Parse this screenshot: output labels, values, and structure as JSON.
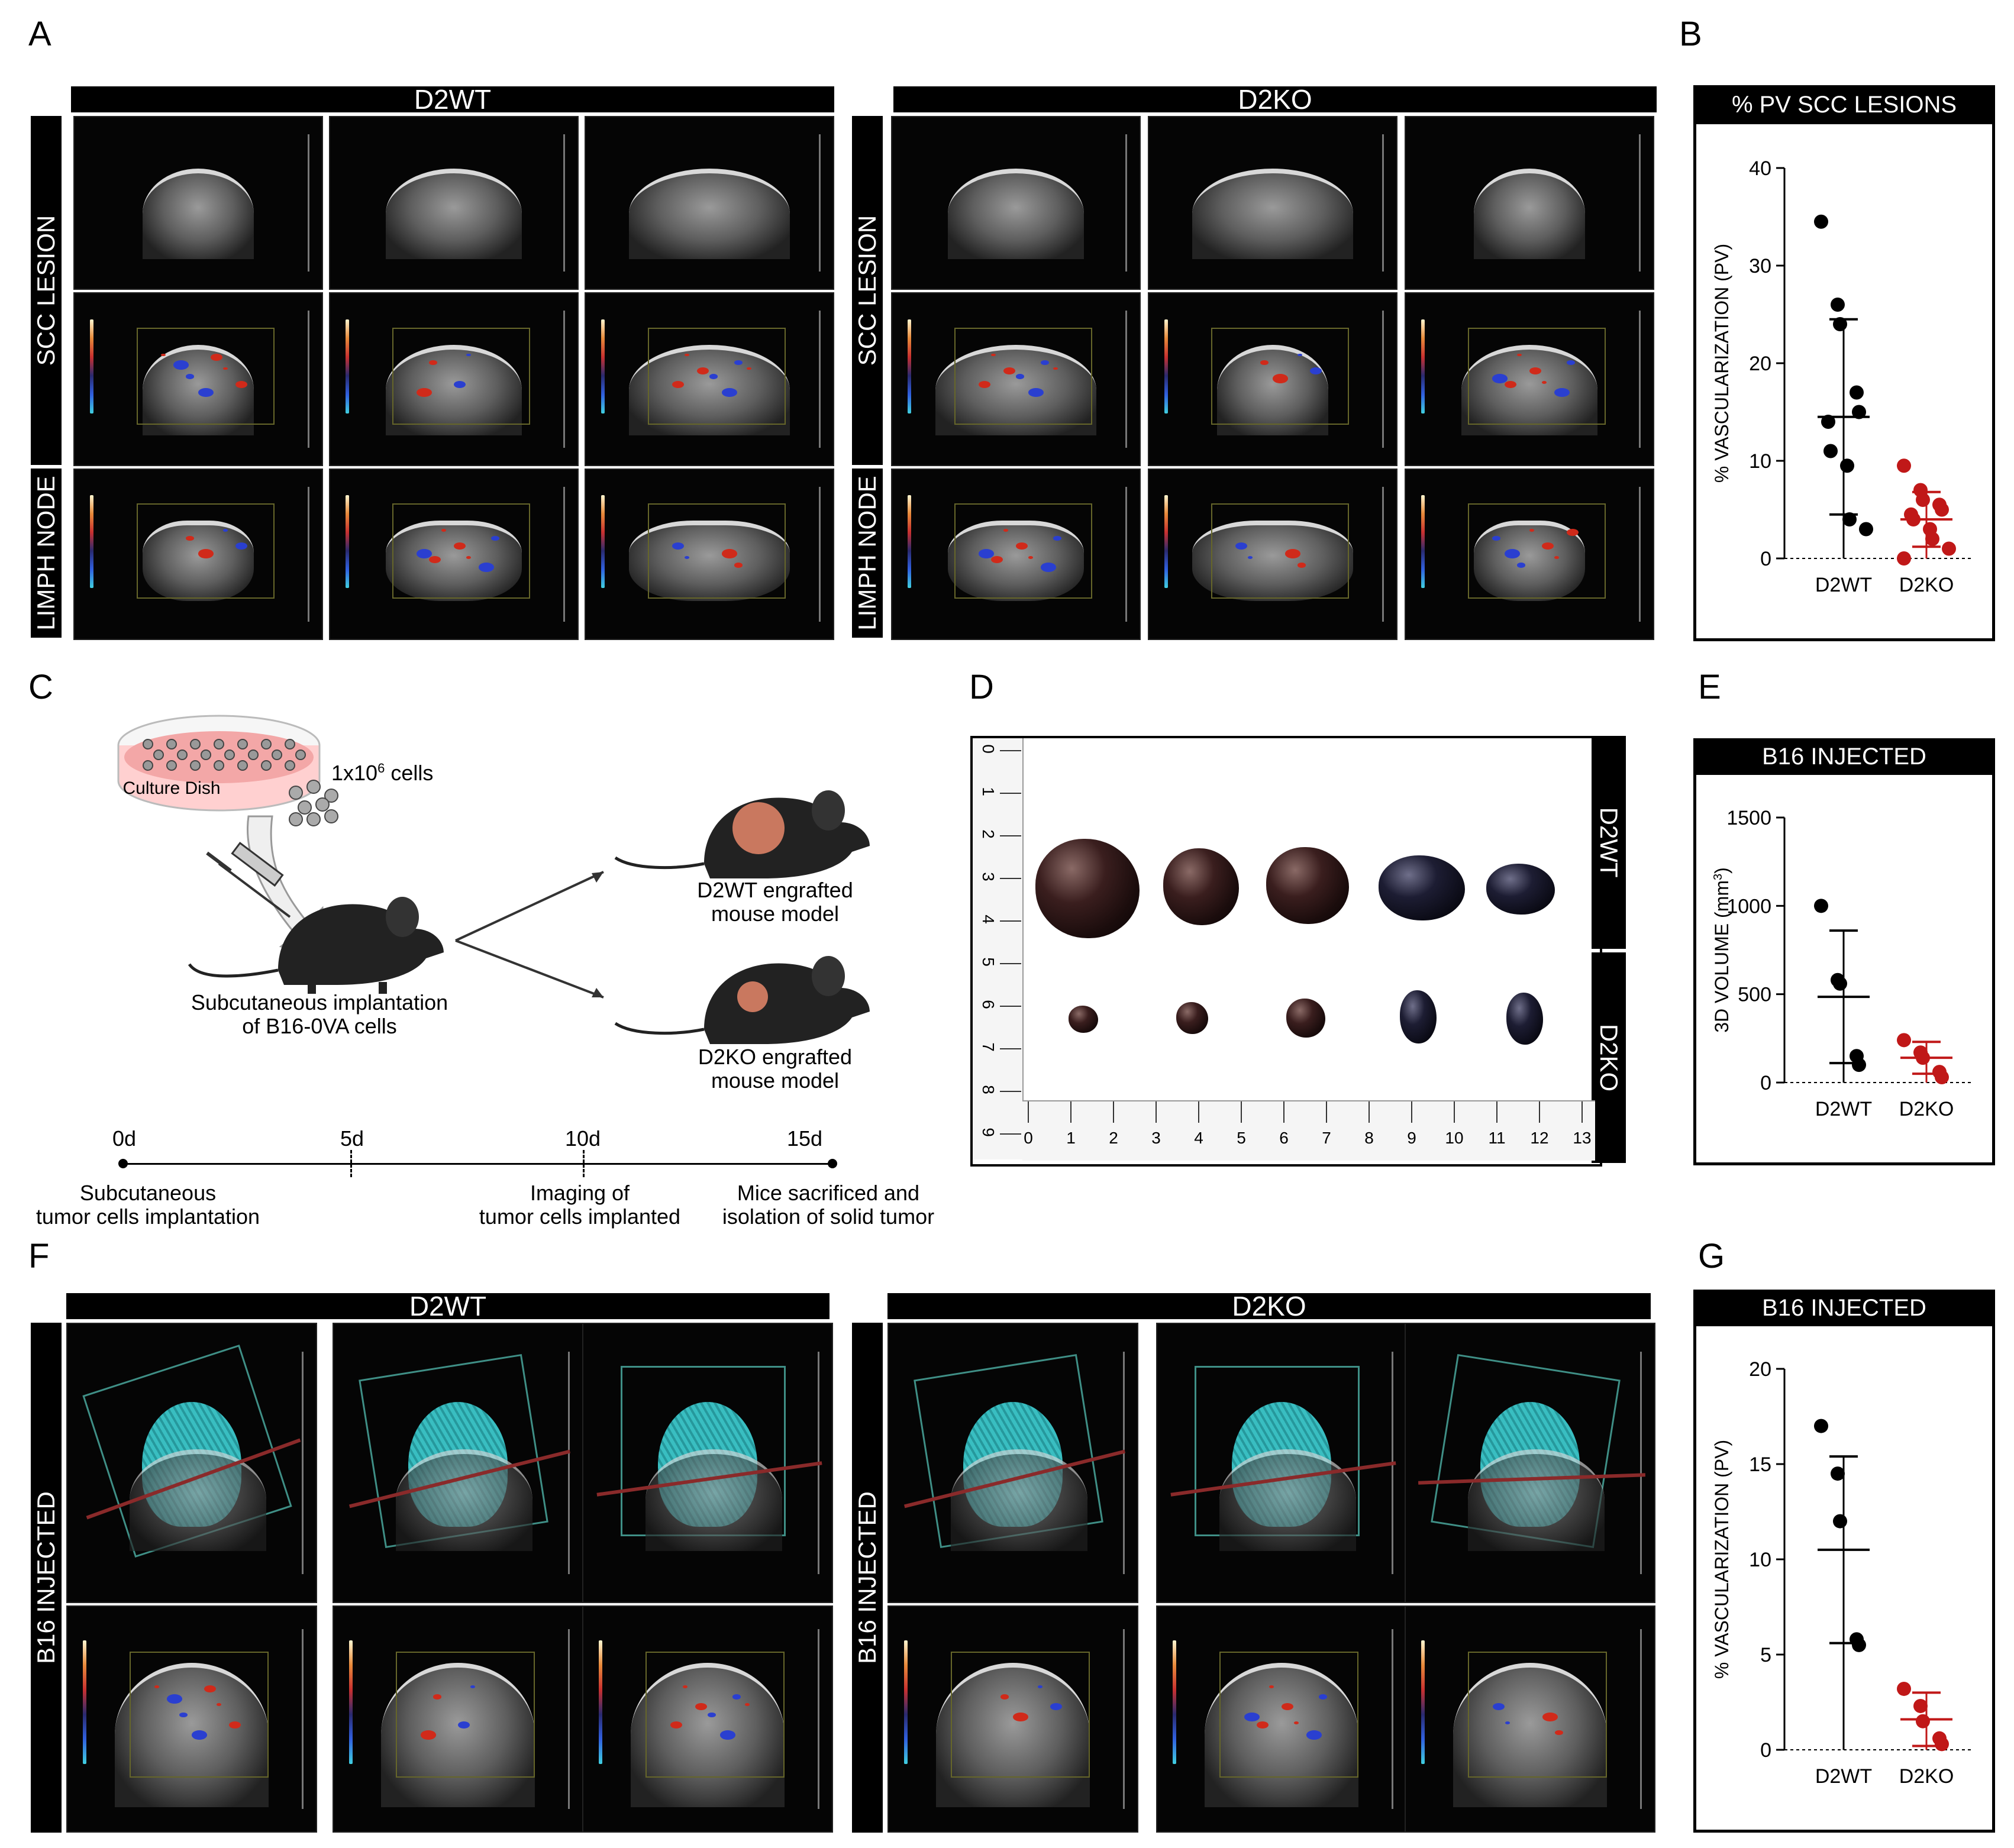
{
  "panel_labels": {
    "a": "A",
    "b": "B",
    "c": "C",
    "d": "D",
    "e": "E",
    "f": "F",
    "g": "G"
  },
  "panel_a": {
    "wt_title": "D2WT",
    "ko_title": "D2KO",
    "row1": "SCC LESION",
    "row2": "LIMPH NODE"
  },
  "panel_f": {
    "wt_title": "D2WT",
    "ko_title": "D2KO",
    "row": "B16 INJECTED"
  },
  "panel_c": {
    "dish": "Culture Dish",
    "cells_base": "1x10",
    "cells_exp": "6",
    "cells_unit": " cells",
    "implant_line1": "Subcutaneous implantation",
    "implant_line2": "of B16-0VA cells",
    "wt_line1": "D2WT engrafted",
    "wt_line2": "mouse model",
    "ko_line1": "D2KO engrafted",
    "ko_line2": "mouse model",
    "timeline": [
      {
        "day": "0d",
        "line1": "Subcutaneous",
        "line2": "tumor cells implantation"
      },
      {
        "day": "5d",
        "line1": "",
        "line2": ""
      },
      {
        "day": "10d",
        "line1": "Imaging of",
        "line2": "tumor cells implanted"
      },
      {
        "day": "15d",
        "line1": "Mice sacrificed and",
        "line2": "isolation of solid tumor"
      }
    ]
  },
  "panel_d": {
    "wt": "D2WT",
    "ko": "D2KO",
    "ruler_h": [
      "0",
      "1",
      "2",
      "3",
      "4",
      "5",
      "6",
      "7",
      "8",
      "9",
      "10",
      "11",
      "12",
      "13"
    ],
    "ruler_v": [
      "0",
      "1",
      "2",
      "3",
      "4",
      "5",
      "6",
      "7",
      "8",
      "9"
    ]
  },
  "chart_data": [
    {
      "type": "scatter",
      "title": "% PV SCC LESIONS",
      "ylabel": "% VASCULARIZATION (PV)",
      "categories": [
        "D2WT",
        "D2KO"
      ],
      "ylim": [
        0,
        40
      ],
      "yticks": [
        "0",
        "10",
        "20",
        "30",
        "40"
      ],
      "series": [
        {
          "name": "D2WT",
          "color": "#000000",
          "values": [
            34.5,
            26,
            24,
            17,
            15,
            14,
            11,
            9.5,
            4,
            3
          ],
          "mean": 14.5,
          "sd": 10
        },
        {
          "name": "D2KO",
          "color": "#c01818",
          "values": [
            9.5,
            7,
            6,
            5.5,
            5,
            4.5,
            4,
            3,
            2,
            1,
            0
          ],
          "mean": 4,
          "sd": 2.8
        }
      ]
    },
    {
      "type": "scatter",
      "title": "B16 INJECTED",
      "ylabel": "3D VOLUME (mm",
      "ylabel_sup": "3",
      "ylabel_end": ")",
      "categories": [
        "D2WT",
        "D2KO"
      ],
      "ylim": [
        0,
        1500
      ],
      "yticks": [
        "0",
        "500",
        "1000",
        "1500"
      ],
      "series": [
        {
          "name": "D2WT",
          "color": "#000000",
          "values": [
            1000,
            580,
            560,
            150,
            100
          ],
          "mean": 485,
          "sd": 375
        },
        {
          "name": "D2KO",
          "color": "#c01818",
          "values": [
            240,
            170,
            140,
            60,
            30
          ],
          "mean": 140,
          "sd": 90
        }
      ]
    },
    {
      "type": "scatter",
      "title": "B16 INJECTED",
      "ylabel": "% VASCULARIZATION (PV)",
      "categories": [
        "D2WT",
        "D2KO"
      ],
      "ylim": [
        0,
        20
      ],
      "yticks": [
        "0",
        "5",
        "10",
        "15",
        "20"
      ],
      "series": [
        {
          "name": "D2WT",
          "color": "#000000",
          "values": [
            17,
            14.5,
            12,
            5.8,
            5.5
          ],
          "mean": 10.5,
          "sd": 4.9
        },
        {
          "name": "D2KO",
          "color": "#c01818",
          "values": [
            3.2,
            2.3,
            1.5,
            0.6,
            0.3
          ],
          "mean": 1.6,
          "sd": 1.4
        }
      ]
    }
  ]
}
